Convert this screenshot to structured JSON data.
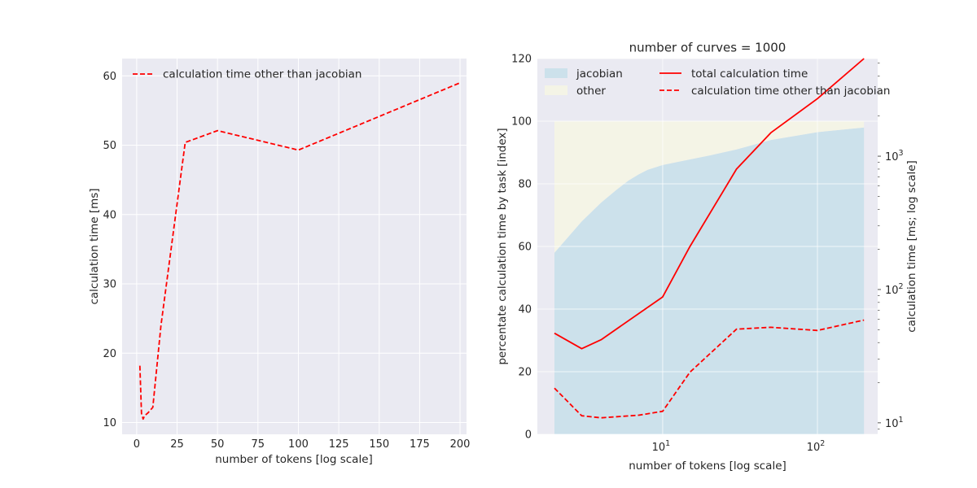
{
  "chart_data": [
    {
      "type": "line",
      "title": "",
      "xlabel": "number of tokens [log scale]",
      "ylabel": "calculation time [ms]",
      "xlim": [
        -9,
        204
      ],
      "ylim": [
        8.3,
        62.5
      ],
      "xticks": [
        0,
        25,
        50,
        75,
        100,
        125,
        150,
        175,
        200
      ],
      "yticks": [
        10,
        20,
        30,
        40,
        50,
        60
      ],
      "grid": true,
      "legend_position": "top-left",
      "series": [
        {
          "name": "calculation time other than jacobian",
          "color": "#ff0000",
          "style": "dashed",
          "x": [
            2,
            3,
            4,
            5,
            7,
            10,
            15,
            30,
            50,
            100,
            200
          ],
          "y": [
            18.2,
            11.3,
            10.5,
            11.0,
            11.4,
            12.2,
            24.0,
            50.4,
            52.1,
            49.3,
            59.0
          ]
        }
      ]
    },
    {
      "type": "area",
      "title": "number of curves = 1000",
      "xlabel": "number of tokens [log scale]",
      "ylabel": "percentate calculation time by task [index]",
      "ylabel_right": "calculation time [ms; log scale]",
      "xscale": "log",
      "x_range": [
        1.55,
        245
      ],
      "ylim": [
        0,
        120
      ],
      "yticks": [
        0,
        20,
        40,
        60,
        80,
        100,
        120
      ],
      "xticks": [
        10,
        100
      ],
      "xtick_labels": [
        {
          "base": "10",
          "exp": "1"
        },
        {
          "base": "10",
          "exp": "2"
        }
      ],
      "right_yscale": "log",
      "right_ylim": [
        8.2,
        5400
      ],
      "right_yticks": [
        10,
        100,
        1000
      ],
      "right_ytick_labels": [
        {
          "base": "10",
          "exp": "1"
        },
        {
          "base": "10",
          "exp": "2"
        },
        {
          "base": "10",
          "exp": "3"
        }
      ],
      "grid": true,
      "legend_position": "top",
      "stacked_area": {
        "x": [
          2,
          3,
          4,
          5,
          6,
          7,
          8,
          10,
          15,
          20,
          30,
          50,
          100,
          200
        ],
        "series": [
          {
            "name": "jacobian",
            "color": "#cce1eb",
            "values": [
              58,
              68,
              74,
              78,
              81,
              83,
              84.5,
              86,
              87.8,
              89,
              91,
              94,
              96.5,
              98
            ]
          },
          {
            "name": "other",
            "color": "#f4f4e6",
            "values": [
              42,
              32,
              26,
              22,
              19,
              17,
              15.5,
              14,
              12.2,
              11,
              9,
              6,
              3.5,
              2
            ]
          }
        ]
      },
      "right_axis_series": [
        {
          "name": "total calculation time",
          "color": "#ff0000",
          "style": "solid",
          "x": [
            2,
            3,
            4,
            10,
            15,
            30,
            50,
            100,
            200
          ],
          "y": [
            47,
            36,
            42,
            88,
            210,
            800,
            1500,
            2700,
            6000
          ]
        },
        {
          "name": "calculation time other than jacobian",
          "color": "#ff0000",
          "style": "dashed",
          "x": [
            2,
            3,
            4,
            7,
            10,
            15,
            30,
            50,
            100,
            200
          ],
          "y": [
            18.2,
            11.3,
            10.9,
            11.4,
            12.2,
            24.0,
            50.4,
            52.1,
            49.3,
            59.0
          ]
        }
      ]
    }
  ]
}
